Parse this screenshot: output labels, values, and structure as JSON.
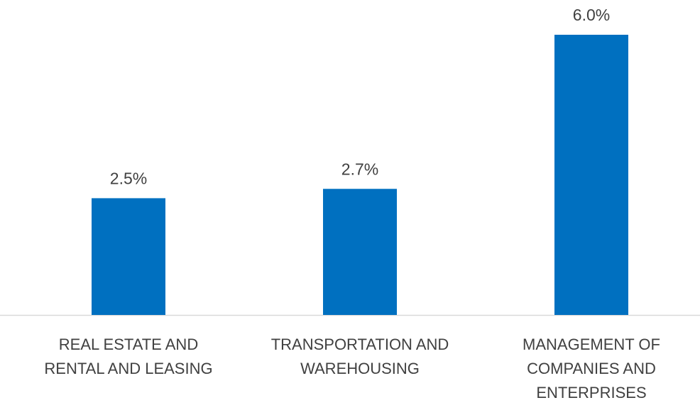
{
  "chart_data": {
    "type": "bar",
    "categories": [
      "REAL ESTATE AND\nRENTAL AND LEASING",
      "TRANSPORTATION AND\nWAREHOUSING",
      "MANAGEMENT OF\nCOMPANIES AND\nENTERPRISES"
    ],
    "values": [
      2.5,
      2.7,
      6.0
    ],
    "value_labels": [
      "2.5%",
      "2.7%",
      "6.0%"
    ],
    "color": "#0070c0"
  }
}
